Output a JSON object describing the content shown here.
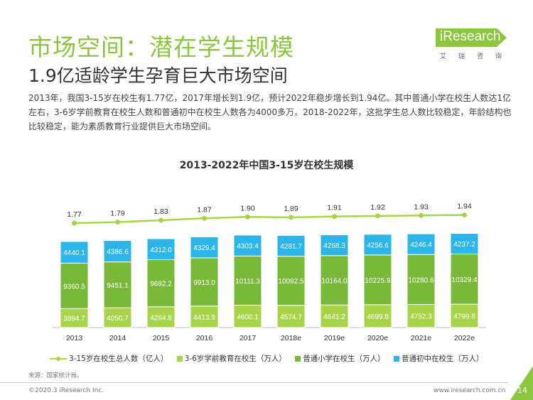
{
  "header": {
    "title": "市场空间：潜在学生规模",
    "subtitle": "1.9亿适龄学生孕育巨大市场空间",
    "description": "2013年，我国3-15岁在校生有1.77亿，2017年增长到1.9亿，预计2022年稳步增长到1.94亿。其中普通小学在校生人数达1亿左右，3-6岁学前教育在校生人数和普通初中在校生人数各为4000多万。2018-2022年，这批学生总人数比较稳定，年龄结构也比较稳定，能为素质教育行业提供巨大市场空间。"
  },
  "logo": {
    "text": "iResearch",
    "sub": "艾瑞咨询"
  },
  "chart_data": {
    "type": "bar",
    "title": "2013-2022年中国3-15岁在校生规模",
    "categories": [
      "2013",
      "2014",
      "2015",
      "2016",
      "2017",
      "2018e",
      "2019e",
      "2020e",
      "2021e",
      "2022e"
    ],
    "series": [
      {
        "name": "3-6岁学前教育在校生（万人）",
        "kind": "bar",
        "values": [
          3894.7,
          4050.7,
          4264.8,
          4413.9,
          4600.1,
          4574.7,
          4641.2,
          4699.8,
          4752.3,
          4799.8
        ],
        "color": "#a8d44a"
      },
      {
        "name": "普通小学在校生（万人）",
        "kind": "bar",
        "values": [
          9360.5,
          9451.1,
          9692.2,
          9913.0,
          10111.3,
          10092.5,
          10164.0,
          10225.9,
          10280.6,
          10329.4
        ],
        "color": "#79b93a"
      },
      {
        "name": "普通初中在校生（万人）",
        "kind": "bar",
        "values": [
          4440.1,
          4386.6,
          4312.0,
          4329.4,
          4303.4,
          4281.7,
          4268.3,
          4256.6,
          4246.4,
          4237.2
        ],
        "color": "#2bb5e8"
      },
      {
        "name": "3-15岁在校生总人数（亿人）",
        "kind": "line",
        "values": [
          1.77,
          1.79,
          1.83,
          1.87,
          1.9,
          1.89,
          1.91,
          1.92,
          1.93,
          1.94
        ],
        "color": "#a8d44a"
      }
    ],
    "stack_order": [
      "3-6岁学前教育在校生（万人）",
      "普通小学在校生（万人）",
      "普通初中在校生（万人）"
    ],
    "legend_order": [
      "3-15岁在校生总人数（亿人）",
      "3-6岁学前教育在校生（万人）",
      "普通小学在校生（万人）",
      "普通初中在校生（万人）"
    ],
    "legend_position": "bottom",
    "grid": false
  },
  "source": "来源：国家统计局。",
  "footer": {
    "copyright": "©2020.3 iResearch Inc.",
    "website": "www.iresearch.com.cn",
    "page": "14"
  }
}
